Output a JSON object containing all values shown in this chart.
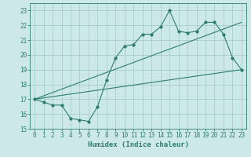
{
  "xlabel": "Humidex (Indice chaleur)",
  "xlim": [
    -0.5,
    23.5
  ],
  "ylim": [
    15,
    23.5
  ],
  "yticks": [
    15,
    16,
    17,
    18,
    19,
    20,
    21,
    22,
    23
  ],
  "xticks": [
    0,
    1,
    2,
    3,
    4,
    5,
    6,
    7,
    8,
    9,
    10,
    11,
    12,
    13,
    14,
    15,
    16,
    17,
    18,
    19,
    20,
    21,
    22,
    23
  ],
  "bg_color": "#cde8e8",
  "grid_color": "#a0c8c8",
  "line_color": "#2e7d70",
  "line1_x": [
    0,
    1,
    2,
    3,
    4,
    5,
    6,
    7,
    8,
    9,
    10,
    11,
    12,
    13,
    14,
    15,
    16,
    17,
    18,
    19,
    20,
    21,
    22,
    23
  ],
  "line1_y": [
    17.0,
    16.8,
    16.6,
    16.6,
    15.7,
    15.6,
    15.5,
    16.5,
    18.3,
    19.8,
    20.6,
    20.7,
    21.4,
    21.4,
    21.9,
    23.0,
    21.6,
    21.5,
    21.6,
    22.2,
    22.2,
    21.4,
    19.8,
    19.0
  ],
  "line2_x": [
    0,
    23
  ],
  "line2_y": [
    17.0,
    19.0
  ],
  "line3_x": [
    0,
    23
  ],
  "line3_y": [
    17.0,
    22.2
  ],
  "tick_fontsize": 5.5,
  "xlabel_fontsize": 6.5
}
